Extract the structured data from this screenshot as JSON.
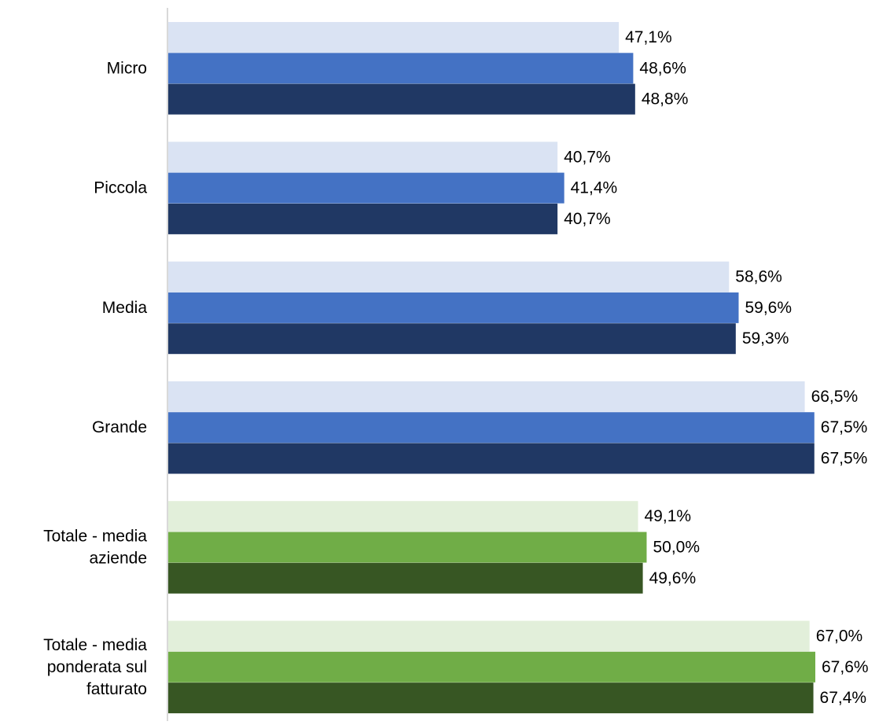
{
  "chart_data": {
    "type": "bar",
    "orientation": "horizontal",
    "categories": [
      "Micro",
      "Piccola",
      "Media",
      "Grande",
      "Totale - media aziende",
      "Totale - media ponderata sul fatturato"
    ],
    "category_label_lines": [
      [
        "Micro"
      ],
      [
        "Piccola"
      ],
      [
        "Media"
      ],
      [
        "Grande"
      ],
      [
        "Totale - media",
        "aziende"
      ],
      [
        "Totale - media",
        "ponderata sul",
        "fatturato"
      ]
    ],
    "series": [
      {
        "values": [
          47.1,
          40.7,
          58.6,
          66.5,
          49.1,
          67.0
        ],
        "labels": [
          "47,1%",
          "40,7%",
          "58,6%",
          "66,5%",
          "49,1%",
          "67,0%"
        ],
        "colors": [
          "#DAE3F3",
          "#DAE3F3",
          "#DAE3F3",
          "#DAE3F3",
          "#E2EFDA",
          "#E2EFDA"
        ]
      },
      {
        "values": [
          48.6,
          41.4,
          59.6,
          67.5,
          50.0,
          67.6
        ],
        "labels": [
          "48,6%",
          "41,4%",
          "59,6%",
          "67,5%",
          "50,0%",
          "67,6%"
        ],
        "colors": [
          "#4472C4",
          "#4472C4",
          "#4472C4",
          "#4472C4",
          "#70AD47",
          "#70AD47"
        ]
      },
      {
        "values": [
          48.8,
          40.7,
          59.3,
          67.5,
          49.6,
          67.4
        ],
        "labels": [
          "48,8%",
          "40,7%",
          "59,3%",
          "67,5%",
          "49,6%",
          "67,4%"
        ],
        "colors": [
          "#203864",
          "#203864",
          "#203864",
          "#203864",
          "#375623",
          "#375623"
        ]
      }
    ],
    "xlim": [
      0,
      67.6
    ],
    "title": "",
    "xlabel": "",
    "ylabel": "",
    "grid": false,
    "legend": "none",
    "axis_color": "#D9D9D9",
    "label_color": "#000000"
  }
}
